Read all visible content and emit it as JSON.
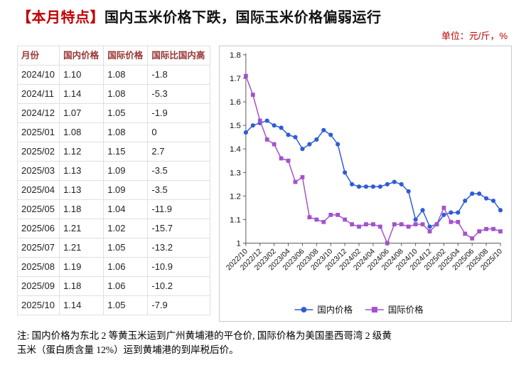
{
  "header": {
    "badge": "【本月特点】",
    "title": "国内玉米价格下跌，国际玉米价格偏弱运行",
    "unit": "单位：元/斤，%"
  },
  "table": {
    "columns": [
      "月份",
      "国内价格",
      "国际价格",
      "国际比国内高"
    ],
    "rows": [
      [
        "2024/10",
        "1.10",
        "1.08",
        "-1.8"
      ],
      [
        "2024/11",
        "1.14",
        "1.08",
        "-5.3"
      ],
      [
        "2024/12",
        "1.07",
        "1.05",
        "-1.9"
      ],
      [
        "2025/01",
        "1.08",
        "1.08",
        "0"
      ],
      [
        "2025/02",
        "1.12",
        "1.15",
        "2.7"
      ],
      [
        "2025/03",
        "1.13",
        "1.09",
        "-3.5"
      ],
      [
        "2025/04",
        "1.13",
        "1.09",
        "-3.5"
      ],
      [
        "2025/05",
        "1.18",
        "1.04",
        "-11.9"
      ],
      [
        "2025/06",
        "1.21",
        "1.02",
        "-15.7"
      ],
      [
        "2025/07",
        "1.21",
        "1.05",
        "-13.2"
      ],
      [
        "2025/08",
        "1.19",
        "1.06",
        "-10.9"
      ],
      [
        "2025/09",
        "1.18",
        "1.06",
        "-10.2"
      ],
      [
        "2025/10",
        "1.14",
        "1.05",
        "-7.9"
      ]
    ]
  },
  "chart_data": {
    "type": "line",
    "title": "",
    "xlabel": "",
    "ylabel": "",
    "ylim": [
      1,
      1.8
    ],
    "yticks": [
      1,
      1.1,
      1.2,
      1.3,
      1.4,
      1.5,
      1.6,
      1.7,
      1.8
    ],
    "grid": false,
    "legend_position": "bottom",
    "x": [
      "2022/10",
      "2022/11",
      "2022/12",
      "2023/01",
      "2023/02",
      "2023/03",
      "2023/04",
      "2023/05",
      "2023/06",
      "2023/07",
      "2023/08",
      "2023/09",
      "2023/10",
      "2023/11",
      "2023/12",
      "2024/01",
      "2024/02",
      "2024/03",
      "2024/04",
      "2024/05",
      "2024/06",
      "2024/07",
      "2024/08",
      "2024/09",
      "2024/10",
      "2024/11",
      "2024/12",
      "2025/01",
      "2025/02",
      "2025/03",
      "2025/04",
      "2025/05",
      "2025/06",
      "2025/07",
      "2025/08",
      "2025/09",
      "2025/10"
    ],
    "x_tick_labels": [
      "2022/10",
      "2022/12",
      "2023/02",
      "2023/04",
      "2023/06",
      "2023/08",
      "2023/10",
      "2023/12",
      "2024/02",
      "2024/04",
      "2024/06",
      "2024/08",
      "2024/10",
      "2024/12",
      "2025/02",
      "2025/04",
      "2025/06",
      "2025/08",
      "2025/10"
    ],
    "series": [
      {
        "name": "国内价格",
        "color": "#2e5cd6",
        "marker": "circle",
        "values": [
          1.47,
          1.5,
          1.51,
          1.52,
          1.5,
          1.49,
          1.46,
          1.45,
          1.4,
          1.42,
          1.44,
          1.48,
          1.46,
          1.42,
          1.3,
          1.25,
          1.24,
          1.24,
          1.24,
          1.24,
          1.25,
          1.26,
          1.25,
          1.22,
          1.1,
          1.14,
          1.07,
          1.08,
          1.12,
          1.13,
          1.13,
          1.18,
          1.21,
          1.21,
          1.19,
          1.18,
          1.14
        ]
      },
      {
        "name": "国际价格",
        "color": "#a352cc",
        "marker": "square",
        "values": [
          1.71,
          1.63,
          1.52,
          1.44,
          1.42,
          1.36,
          1.35,
          1.26,
          1.28,
          1.11,
          1.1,
          1.09,
          1.12,
          1.12,
          1.1,
          1.08,
          1.07,
          1.08,
          1.08,
          1.07,
          1.0,
          1.08,
          1.08,
          1.07,
          1.08,
          1.08,
          1.05,
          1.08,
          1.15,
          1.09,
          1.09,
          1.04,
          1.02,
          1.05,
          1.06,
          1.06,
          1.05
        ]
      }
    ]
  },
  "footnote": {
    "line1": "注: 国内价格为东北 2 等黄玉米运到广州黄埔港的平仓价, 国际价格为美国墨西哥湾 2 级黄",
    "line2": "玉米（蛋白质含量 12%）运到黄埔港的到岸税后价。"
  }
}
